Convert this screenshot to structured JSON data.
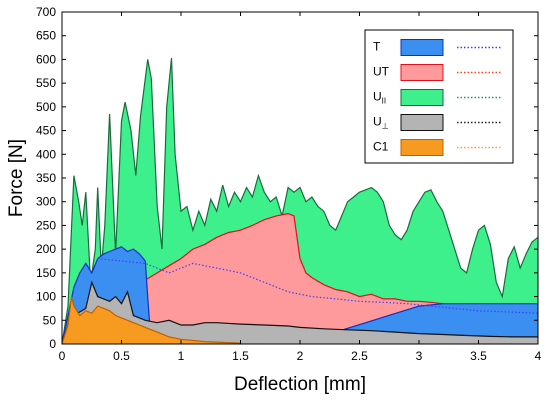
{
  "chart_data": {
    "type": "area",
    "xlabel": "Deflection [mm]",
    "ylabel": "Force [N]",
    "xlim": [
      0,
      4
    ],
    "ylim": [
      0,
      700
    ],
    "x_ticks": [
      "0",
      "0.5",
      "1",
      "1.5",
      "2",
      "2.5",
      "3",
      "3.5",
      "4"
    ],
    "y_ticks": [
      "0",
      "50",
      "100",
      "150",
      "200",
      "250",
      "300",
      "350",
      "400",
      "450",
      "500",
      "550",
      "600",
      "650",
      "700"
    ],
    "grid": false,
    "legend_position": "top-right",
    "series": [
      {
        "name": "U∥",
        "legend_label": "U",
        "legend_sub": "II",
        "fill": "#3ef08c",
        "line": "#1a6b3c",
        "dotted": "#2a9a5a",
        "points": [
          [
            0,
            0
          ],
          [
            0.05,
            80
          ],
          [
            0.1,
            355
          ],
          [
            0.14,
            300
          ],
          [
            0.17,
            250
          ],
          [
            0.2,
            320
          ],
          [
            0.24,
            130
          ],
          [
            0.28,
            200
          ],
          [
            0.3,
            330
          ],
          [
            0.33,
            160
          ],
          [
            0.36,
            250
          ],
          [
            0.4,
            485
          ],
          [
            0.45,
            190
          ],
          [
            0.5,
            470
          ],
          [
            0.53,
            510
          ],
          [
            0.58,
            450
          ],
          [
            0.62,
            355
          ],
          [
            0.66,
            480
          ],
          [
            0.72,
            600
          ],
          [
            0.75,
            560
          ],
          [
            0.8,
            290
          ],
          [
            0.84,
            200
          ],
          [
            0.88,
            500
          ],
          [
            0.92,
            603
          ],
          [
            0.95,
            400
          ],
          [
            1.0,
            280
          ],
          [
            1.05,
            290
          ],
          [
            1.1,
            240
          ],
          [
            1.15,
            280
          ],
          [
            1.2,
            250
          ],
          [
            1.25,
            305
          ],
          [
            1.3,
            280
          ],
          [
            1.35,
            335
          ],
          [
            1.4,
            290
          ],
          [
            1.45,
            320
          ],
          [
            1.5,
            300
          ],
          [
            1.55,
            330
          ],
          [
            1.6,
            310
          ],
          [
            1.65,
            355
          ],
          [
            1.7,
            320
          ],
          [
            1.75,
            300
          ],
          [
            1.8,
            310
          ],
          [
            1.85,
            270
          ],
          [
            1.9,
            330
          ],
          [
            1.95,
            320
          ],
          [
            2.0,
            330
          ],
          [
            2.05,
            300
          ],
          [
            2.1,
            310
          ],
          [
            2.15,
            290
          ],
          [
            2.2,
            280
          ],
          [
            2.25,
            250
          ],
          [
            2.3,
            240
          ],
          [
            2.35,
            270
          ],
          [
            2.4,
            300
          ],
          [
            2.45,
            310
          ],
          [
            2.5,
            320
          ],
          [
            2.55,
            325
          ],
          [
            2.6,
            330
          ],
          [
            2.65,
            320
          ],
          [
            2.7,
            300
          ],
          [
            2.75,
            250
          ],
          [
            2.8,
            230
          ],
          [
            2.85,
            220
          ],
          [
            2.9,
            240
          ],
          [
            2.95,
            280
          ],
          [
            3.0,
            300
          ],
          [
            3.05,
            320
          ],
          [
            3.1,
            325
          ],
          [
            3.15,
            300
          ],
          [
            3.2,
            280
          ],
          [
            3.25,
            240
          ],
          [
            3.3,
            200
          ],
          [
            3.35,
            160
          ],
          [
            3.4,
            150
          ],
          [
            3.45,
            200
          ],
          [
            3.5,
            240
          ],
          [
            3.55,
            250
          ],
          [
            3.6,
            210
          ],
          [
            3.65,
            130
          ],
          [
            3.7,
            100
          ],
          [
            3.75,
            180
          ],
          [
            3.8,
            205
          ],
          [
            3.85,
            160
          ],
          [
            3.9,
            190
          ],
          [
            3.95,
            215
          ],
          [
            4.0,
            225
          ],
          [
            4.0,
            0
          ]
        ]
      },
      {
        "name": "UT",
        "legend_label": "UT",
        "legend_sub": "",
        "fill": "#ff9a9c",
        "line": "#e0101c",
        "dotted": "#ff4020",
        "points": [
          [
            0,
            0
          ],
          [
            0.05,
            30
          ],
          [
            0.1,
            60
          ],
          [
            0.2,
            80
          ],
          [
            0.3,
            90
          ],
          [
            0.4,
            100
          ],
          [
            0.45,
            80
          ],
          [
            0.5,
            70
          ],
          [
            0.55,
            110
          ],
          [
            0.6,
            120
          ],
          [
            0.65,
            130
          ],
          [
            0.7,
            135
          ],
          [
            0.8,
            150
          ],
          [
            0.9,
            165
          ],
          [
            1.0,
            180
          ],
          [
            1.1,
            200
          ],
          [
            1.2,
            210
          ],
          [
            1.3,
            225
          ],
          [
            1.4,
            235
          ],
          [
            1.5,
            240
          ],
          [
            1.6,
            250
          ],
          [
            1.7,
            262
          ],
          [
            1.8,
            270
          ],
          [
            1.9,
            275
          ],
          [
            1.95,
            270
          ],
          [
            2.0,
            180
          ],
          [
            2.05,
            150
          ],
          [
            2.1,
            140
          ],
          [
            2.2,
            125
          ],
          [
            2.3,
            115
          ],
          [
            2.4,
            110
          ],
          [
            2.5,
            100
          ],
          [
            2.6,
            105
          ],
          [
            2.7,
            95
          ],
          [
            2.8,
            95
          ],
          [
            2.9,
            90
          ],
          [
            3.0,
            90
          ],
          [
            3.1,
            88
          ],
          [
            3.2,
            85
          ],
          [
            3.3,
            80
          ],
          [
            3.4,
            75
          ],
          [
            3.5,
            75
          ],
          [
            3.6,
            72
          ],
          [
            3.7,
            70
          ],
          [
            3.8,
            70
          ],
          [
            3.9,
            70
          ],
          [
            4.0,
            70
          ],
          [
            4.0,
            0
          ]
        ]
      },
      {
        "name": "T",
        "legend_label": "T",
        "legend_sub": "",
        "fill": "#3a8ff0",
        "line": "#1030c0",
        "dotted": "#3c3cff",
        "points": [
          [
            0,
            0
          ],
          [
            0.05,
            60
          ],
          [
            0.1,
            120
          ],
          [
            0.15,
            150
          ],
          [
            0.2,
            170
          ],
          [
            0.25,
            150
          ],
          [
            0.3,
            180
          ],
          [
            0.35,
            190
          ],
          [
            0.4,
            195
          ],
          [
            0.45,
            200
          ],
          [
            0.5,
            205
          ],
          [
            0.55,
            195
          ],
          [
            0.6,
            200
          ],
          [
            0.65,
            190
          ],
          [
            0.7,
            175
          ],
          [
            0.72,
            100
          ],
          [
            0.74,
            30
          ],
          [
            0.78,
            30
          ],
          [
            0.8,
            20
          ],
          [
            0.85,
            15
          ],
          [
            0.9,
            10
          ],
          [
            1.0,
            8
          ],
          [
            1.2,
            5
          ],
          [
            1.5,
            3
          ],
          [
            2.0,
            2
          ],
          [
            3.0,
            80
          ],
          [
            3.2,
            85
          ],
          [
            3.5,
            85
          ],
          [
            4.0,
            85
          ],
          [
            4.0,
            0
          ]
        ]
      },
      {
        "name": "U⊥",
        "legend_label": "U",
        "legend_sub": "⊥",
        "fill": "#b4b4b4",
        "line": "#111111",
        "dotted": "#222222",
        "points": [
          [
            0,
            0
          ],
          [
            0.05,
            40
          ],
          [
            0.1,
            60
          ],
          [
            0.2,
            75
          ],
          [
            0.25,
            130
          ],
          [
            0.3,
            100
          ],
          [
            0.35,
            95
          ],
          [
            0.4,
            90
          ],
          [
            0.45,
            100
          ],
          [
            0.5,
            85
          ],
          [
            0.55,
            110
          ],
          [
            0.6,
            60
          ],
          [
            0.65,
            55
          ],
          [
            0.7,
            50
          ],
          [
            0.8,
            45
          ],
          [
            0.9,
            50
          ],
          [
            1.0,
            40
          ],
          [
            1.1,
            40
          ],
          [
            1.2,
            45
          ],
          [
            1.3,
            45
          ],
          [
            1.5,
            42
          ],
          [
            1.7,
            40
          ],
          [
            1.9,
            38
          ],
          [
            2.0,
            35
          ],
          [
            2.2,
            32
          ],
          [
            2.4,
            30
          ],
          [
            2.6,
            28
          ],
          [
            2.8,
            25
          ],
          [
            3.0,
            22
          ],
          [
            3.2,
            20
          ],
          [
            3.4,
            18
          ],
          [
            3.6,
            16
          ],
          [
            3.8,
            15
          ],
          [
            4.0,
            15
          ],
          [
            4.0,
            0
          ]
        ]
      },
      {
        "name": "C1",
        "legend_label": "C1",
        "legend_sub": "",
        "fill": "#f79a20",
        "line": "#c06000",
        "dotted": "#ff9a40",
        "points": [
          [
            0,
            0
          ],
          [
            0.05,
            40
          ],
          [
            0.08,
            100
          ],
          [
            0.1,
            80
          ],
          [
            0.15,
            60
          ],
          [
            0.2,
            70
          ],
          [
            0.25,
            65
          ],
          [
            0.3,
            80
          ],
          [
            0.35,
            75
          ],
          [
            0.4,
            70
          ],
          [
            0.45,
            60
          ],
          [
            0.5,
            55
          ],
          [
            0.55,
            50
          ],
          [
            0.6,
            45
          ],
          [
            0.65,
            40
          ],
          [
            0.7,
            35
          ],
          [
            0.75,
            30
          ],
          [
            0.8,
            25
          ],
          [
            0.9,
            15
          ],
          [
            1.0,
            10
          ],
          [
            1.2,
            5
          ],
          [
            1.5,
            2
          ],
          [
            2.0,
            0
          ],
          [
            4.0,
            0
          ]
        ]
      }
    ],
    "dotted_overlays": [
      {
        "series": "T",
        "color": "#4040ff",
        "points": [
          [
            0.3,
            180
          ],
          [
            0.5,
            175
          ],
          [
            0.7,
            170
          ],
          [
            0.9,
            150
          ],
          [
            1.1,
            170
          ],
          [
            1.3,
            160
          ],
          [
            1.5,
            150
          ],
          [
            1.7,
            130
          ],
          [
            1.9,
            110
          ],
          [
            2.1,
            100
          ],
          [
            2.3,
            95
          ],
          [
            2.5,
            90
          ],
          [
            2.7,
            88
          ],
          [
            2.9,
            85
          ],
          [
            3.1,
            80
          ],
          [
            3.3,
            75
          ],
          [
            3.5,
            70
          ],
          [
            3.7,
            68
          ],
          [
            4.0,
            65
          ]
        ]
      }
    ]
  }
}
